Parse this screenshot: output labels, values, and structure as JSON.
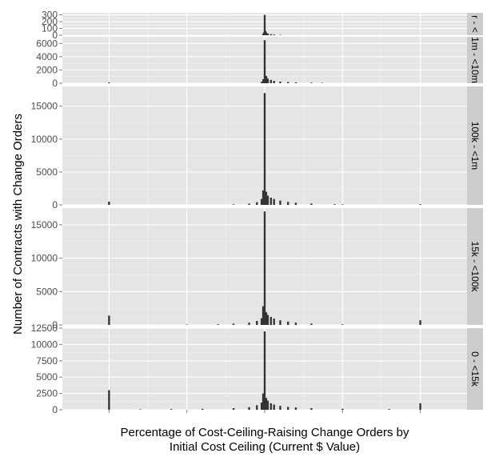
{
  "chart_data": {
    "type": "bar",
    "title": "",
    "ylabel": "Number of Contracts with Change Orders",
    "xlabel_line1": "Percentage of Cost-Ceiling-Raising Change Orders by",
    "xlabel_line2": "Initial Cost Ceiling (Current $ Value)",
    "x_tick_labels": [
      "",
      "",
      "",
      "",
      ""
    ],
    "x_ticks": [
      -1,
      -0.5,
      0,
      0.5,
      1
    ],
    "xlim": [
      -1.3,
      1.3
    ],
    "grid": true,
    "facets": [
      {
        "label": "r - <",
        "ylim": [
          0,
          330
        ],
        "yticks": [
          0,
          100,
          200,
          300
        ],
        "ytick_labels": [
          "0",
          "100",
          "200",
          "300"
        ],
        "bars": [
          {
            "x": -0.01,
            "y": 20
          },
          {
            "x": -0.005,
            "y": 40
          },
          {
            "x": 0,
            "y": 300
          },
          {
            "x": 0.005,
            "y": 60
          },
          {
            "x": 0.01,
            "y": 40
          },
          {
            "x": 0.02,
            "y": 25
          },
          {
            "x": 0.04,
            "y": 15
          },
          {
            "x": 0.06,
            "y": 10
          },
          {
            "x": 0.1,
            "y": 6
          }
        ]
      },
      {
        "label": "1m - <10m",
        "ylim": [
          0,
          7000
        ],
        "yticks": [
          0,
          2000,
          4000,
          6000
        ],
        "ytick_labels": [
          "0",
          "2000",
          "4000",
          "6000"
        ],
        "bars": [
          {
            "x": -1,
            "y": 120
          },
          {
            "x": -0.02,
            "y": 200
          },
          {
            "x": -0.01,
            "y": 600
          },
          {
            "x": 0,
            "y": 6500
          },
          {
            "x": 0.01,
            "y": 1100
          },
          {
            "x": 0.02,
            "y": 700
          },
          {
            "x": 0.04,
            "y": 500
          },
          {
            "x": 0.06,
            "y": 350
          },
          {
            "x": 0.1,
            "y": 250
          },
          {
            "x": 0.15,
            "y": 180
          },
          {
            "x": 0.2,
            "y": 130
          },
          {
            "x": 0.3,
            "y": 80
          },
          {
            "x": 0.37,
            "y": 50
          }
        ]
      },
      {
        "label": "100k - <1m",
        "ylim": [
          0,
          18000
        ],
        "yticks": [
          0,
          5000,
          10000,
          15000
        ],
        "ytick_labels": [
          "0",
          "5000",
          "10000",
          "15000"
        ],
        "bars": [
          {
            "x": -1,
            "y": 500
          },
          {
            "x": -0.2,
            "y": 80
          },
          {
            "x": -0.1,
            "y": 200
          },
          {
            "x": -0.05,
            "y": 400
          },
          {
            "x": -0.02,
            "y": 900
          },
          {
            "x": -0.01,
            "y": 2200
          },
          {
            "x": 0,
            "y": 17000
          },
          {
            "x": 0.01,
            "y": 2000
          },
          {
            "x": 0.02,
            "y": 1400
          },
          {
            "x": 0.04,
            "y": 1100
          },
          {
            "x": 0.06,
            "y": 900
          },
          {
            "x": 0.1,
            "y": 650
          },
          {
            "x": 0.15,
            "y": 450
          },
          {
            "x": 0.2,
            "y": 320
          },
          {
            "x": 0.3,
            "y": 200
          },
          {
            "x": 0.45,
            "y": 100
          },
          {
            "x": 0.5,
            "y": 70
          },
          {
            "x": 1,
            "y": 100
          }
        ]
      },
      {
        "label": "15k - <100k",
        "ylim": [
          0,
          17500
        ],
        "yticks": [
          0,
          5000,
          10000,
          15000
        ],
        "ytick_labels": [
          "0",
          "5000",
          "10000",
          "15000"
        ],
        "bars": [
          {
            "x": -1,
            "y": 1400
          },
          {
            "x": -0.5,
            "y": 60
          },
          {
            "x": -0.3,
            "y": 100
          },
          {
            "x": -0.2,
            "y": 200
          },
          {
            "x": -0.1,
            "y": 350
          },
          {
            "x": -0.05,
            "y": 600
          },
          {
            "x": -0.02,
            "y": 1000
          },
          {
            "x": -0.01,
            "y": 2800
          },
          {
            "x": 0,
            "y": 17000
          },
          {
            "x": 0.01,
            "y": 1900
          },
          {
            "x": 0.02,
            "y": 1500
          },
          {
            "x": 0.04,
            "y": 1200
          },
          {
            "x": 0.06,
            "y": 950
          },
          {
            "x": 0.1,
            "y": 700
          },
          {
            "x": 0.15,
            "y": 500
          },
          {
            "x": 0.2,
            "y": 350
          },
          {
            "x": 0.3,
            "y": 200
          },
          {
            "x": 0.5,
            "y": 80
          },
          {
            "x": 1,
            "y": 700
          }
        ]
      },
      {
        "label": "0 - <15k",
        "ylim": [
          0,
          12500
        ],
        "yticks": [
          0,
          2500,
          5000,
          7500,
          10000,
          12500
        ],
        "ytick_labels": [
          "0",
          "2500",
          "5000",
          "7500",
          "10000",
          "12500"
        ],
        "bars": [
          {
            "x": -1,
            "y": 3000
          },
          {
            "x": -0.8,
            "y": 60
          },
          {
            "x": -0.6,
            "y": 100
          },
          {
            "x": -0.4,
            "y": 150
          },
          {
            "x": -0.2,
            "y": 250
          },
          {
            "x": -0.1,
            "y": 400
          },
          {
            "x": -0.05,
            "y": 700
          },
          {
            "x": -0.02,
            "y": 1100
          },
          {
            "x": -0.01,
            "y": 2500
          },
          {
            "x": 0,
            "y": 12000
          },
          {
            "x": 0.01,
            "y": 1800
          },
          {
            "x": 0.02,
            "y": 1400
          },
          {
            "x": 0.04,
            "y": 1000
          },
          {
            "x": 0.06,
            "y": 800
          },
          {
            "x": 0.1,
            "y": 600
          },
          {
            "x": 0.15,
            "y": 450
          },
          {
            "x": 0.2,
            "y": 350
          },
          {
            "x": 0.3,
            "y": 250
          },
          {
            "x": 0.5,
            "y": 150
          },
          {
            "x": 0.8,
            "y": 100
          },
          {
            "x": 1,
            "y": 1000
          }
        ]
      }
    ]
  }
}
